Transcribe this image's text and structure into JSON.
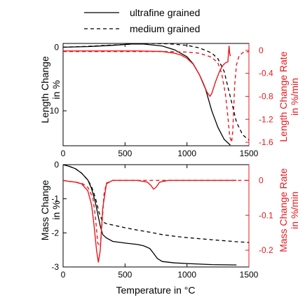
{
  "legend": {
    "placement": "top-center",
    "entries": [
      {
        "label": "ultrafine grained",
        "linestyle": "solid"
      },
      {
        "label": "medium grained",
        "linestyle": "dashed"
      }
    ]
  },
  "colors": {
    "primary": "#000000",
    "secondary": "#e8191e"
  },
  "chart_data": [
    {
      "type": "line",
      "panel": "top",
      "xlabel": "",
      "ylabel": "Length Change in %",
      "y2label": "Length Change Rate in %/min",
      "xlim": [
        0,
        1500
      ],
      "ylim": [
        -15.5,
        0.6
      ],
      "y2lim": [
        -1.66,
        0.12
      ],
      "xticks": [
        "0",
        "500",
        "1000",
        "1500"
      ],
      "yticks": [
        {
          "v": 0,
          "label": "0"
        },
        {
          "v": -10,
          "label": "-10"
        }
      ],
      "y2ticks": [
        {
          "v": 0,
          "label": "0"
        },
        {
          "v": -0.4,
          "label": "-0.4"
        },
        {
          "v": -0.8,
          "label": "-0.8"
        },
        {
          "v": -1.2,
          "label": "-1.2"
        },
        {
          "v": -1.6,
          "label": "-1.6"
        }
      ],
      "grid": false,
      "series": [
        {
          "name": "ultrafine grained",
          "axis": "y",
          "color": "#000000",
          "dash": "solid",
          "x": [
            0,
            200,
            400,
            550,
            650,
            800,
            900,
            1000,
            1050,
            1100,
            1150,
            1200,
            1250,
            1300,
            1350
          ],
          "y": [
            0,
            0.1,
            0.3,
            0.5,
            0.5,
            0.2,
            -0.4,
            -1.5,
            -2.6,
            -4.3,
            -6.6,
            -10,
            -12.6,
            -14.5,
            -15.4
          ]
        },
        {
          "name": "medium grained",
          "axis": "y",
          "color": "#000000",
          "dash": "dashed",
          "x": [
            0,
            200,
            400,
            600,
            700,
            850,
            1000,
            1100,
            1200,
            1250,
            1300,
            1350,
            1400,
            1450,
            1500
          ],
          "y": [
            0,
            0.15,
            0.35,
            0.55,
            0.6,
            0.55,
            0.3,
            -0.1,
            -0.9,
            -1.8,
            -3.8,
            -7.8,
            -11.8,
            -13.8,
            -14.6
          ]
        },
        {
          "name": "",
          "axis": "y2",
          "color": "#e8191e",
          "dash": "solid",
          "x": [
            0,
            300,
            600,
            800,
            900,
            950,
            1000,
            1050,
            1100,
            1130,
            1160,
            1185,
            1200,
            1230,
            1260,
            1290,
            1310,
            1330,
            1335,
            1340,
            1345,
            1350
          ],
          "y": [
            -0.01,
            -0.01,
            -0.01,
            -0.02,
            -0.05,
            -0.08,
            -0.14,
            -0.24,
            -0.42,
            -0.56,
            -0.72,
            -0.8,
            -0.75,
            -0.55,
            -0.38,
            -0.26,
            -0.22,
            -0.2,
            -0.05,
            0.08,
            -0.05,
            -0.1
          ]
        },
        {
          "name": "",
          "axis": "y2",
          "color": "#e8191e",
          "dash": "dashed",
          "x": [
            0,
            300,
            600,
            800,
            1000,
            1100,
            1200,
            1250,
            1280,
            1310,
            1330,
            1345,
            1360,
            1370,
            1385,
            1400,
            1420,
            1450,
            1500
          ],
          "y": [
            -0.02,
            -0.02,
            -0.02,
            -0.02,
            -0.03,
            -0.05,
            -0.12,
            -0.22,
            -0.4,
            -0.75,
            -1.15,
            -1.5,
            -1.6,
            -1.4,
            -0.6,
            -0.25,
            -0.1,
            -0.04,
            -0.02
          ]
        }
      ]
    },
    {
      "type": "line",
      "panel": "bottom",
      "xlabel": "Temperature in °C",
      "ylabel": "Mass Change in %",
      "y2label": "Mass Change Rate in %/min",
      "xlim": [
        0,
        1500
      ],
      "ylim": [
        -3,
        0
      ],
      "y2lim": [
        -0.248,
        0.045
      ],
      "xticks": [
        "0",
        "500",
        "1000",
        "1500"
      ],
      "yticks": [
        {
          "v": 0,
          "label": "0"
        },
        {
          "v": -1,
          "label": "-1"
        },
        {
          "v": -2,
          "label": "-2"
        },
        {
          "v": -3,
          "label": "-3"
        }
      ],
      "y2ticks": [
        {
          "v": 0,
          "label": "0"
        },
        {
          "v": -0.1,
          "label": "-0.1"
        },
        {
          "v": -0.2,
          "label": "-0.2"
        }
      ],
      "grid": false,
      "series": [
        {
          "name": "ultrafine grained",
          "axis": "y",
          "color": "#000000",
          "dash": "solid",
          "x": [
            0,
            50,
            100,
            150,
            200,
            230,
            260,
            280,
            300,
            320,
            350,
            400,
            500,
            600,
            650,
            700,
            730,
            760,
            800,
            900,
            1000,
            1200,
            1400
          ],
          "y": [
            0,
            -0.05,
            -0.12,
            -0.25,
            -0.45,
            -0.7,
            -1.1,
            -1.45,
            -1.8,
            -2.05,
            -2.15,
            -2.25,
            -2.3,
            -2.34,
            -2.38,
            -2.46,
            -2.6,
            -2.75,
            -2.84,
            -2.88,
            -2.9,
            -2.93,
            -2.94
          ]
        },
        {
          "name": "medium grained",
          "axis": "y",
          "color": "#000000",
          "dash": "dashed",
          "x": [
            0,
            50,
            100,
            150,
            200,
            230,
            250,
            270,
            290,
            320,
            350,
            400,
            500,
            600,
            700,
            800,
            900,
            1000,
            1200,
            1400,
            1500
          ],
          "y": [
            0,
            -0.05,
            -0.12,
            -0.25,
            -0.45,
            -0.65,
            -0.85,
            -1.1,
            -1.4,
            -1.68,
            -1.73,
            -1.77,
            -1.85,
            -1.92,
            -1.98,
            -2.05,
            -2.1,
            -2.14,
            -2.2,
            -2.26,
            -2.28
          ]
        },
        {
          "name": "",
          "axis": "y2",
          "color": "#e8191e",
          "dash": "solid",
          "x": [
            0,
            50,
            100,
            150,
            200,
            230,
            250,
            270,
            285,
            300,
            320,
            350,
            400,
            500,
            600,
            680,
            710,
            730,
            750,
            780,
            850,
            1000,
            1200,
            1400
          ],
          "y": [
            0,
            -0.003,
            -0.005,
            -0.01,
            -0.03,
            -0.07,
            -0.13,
            -0.2,
            -0.235,
            -0.2,
            -0.08,
            -0.01,
            0,
            0,
            0,
            -0.005,
            -0.015,
            -0.025,
            -0.02,
            -0.005,
            0,
            0,
            0,
            0
          ]
        },
        {
          "name": "",
          "axis": "y2",
          "color": "#e8191e",
          "dash": "dashed",
          "x": [
            0,
            50,
            100,
            150,
            200,
            240,
            260,
            280,
            300,
            315,
            330,
            350,
            400,
            500,
            600,
            700,
            800,
            1000,
            1200,
            1500
          ],
          "y": [
            0,
            -0.003,
            -0.005,
            -0.008,
            -0.02,
            -0.05,
            -0.1,
            -0.18,
            -0.19,
            -0.12,
            -0.04,
            -0.008,
            0,
            0,
            0,
            0,
            0,
            0,
            0,
            0
          ]
        }
      ]
    }
  ]
}
